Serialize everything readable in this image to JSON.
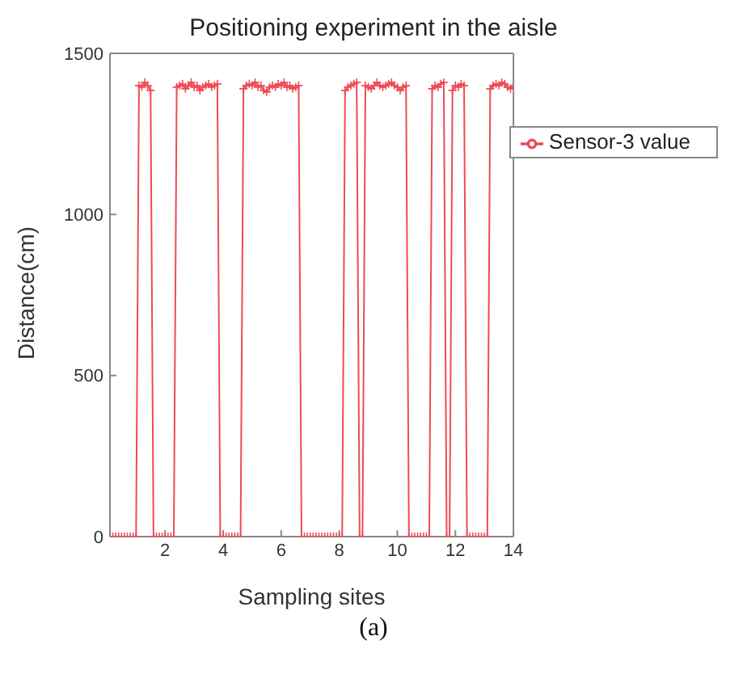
{
  "chart_data": {
    "type": "line",
    "title": "Positioning experiment in the aisle",
    "xlabel": "Sampling sites",
    "ylabel": "Distance(cm)",
    "annotations": [
      "(a)"
    ],
    "x": [
      0.1,
      0.2,
      0.3,
      0.4,
      0.5,
      0.6,
      0.7,
      0.8,
      0.9,
      1.0,
      1.1,
      1.2,
      1.3,
      1.4,
      1.5,
      1.6,
      1.7,
      1.8,
      1.9,
      2.0,
      2.1,
      2.2,
      2.3,
      2.4,
      2.5,
      2.6,
      2.7,
      2.8,
      2.9,
      3.0,
      3.1,
      3.2,
      3.3,
      3.4,
      3.5,
      3.6,
      3.7,
      3.8,
      3.9,
      4.0,
      4.1,
      4.2,
      4.3,
      4.4,
      4.5,
      4.6,
      4.7,
      4.8,
      4.9,
      5.0,
      5.1,
      5.2,
      5.3,
      5.4,
      5.5,
      5.6,
      5.7,
      5.8,
      5.9,
      6.0,
      6.1,
      6.2,
      6.3,
      6.4,
      6.5,
      6.6,
      6.7,
      6.8,
      6.9,
      7.0,
      7.1,
      7.2,
      7.3,
      7.4,
      7.5,
      7.6,
      7.7,
      7.8,
      7.9,
      8.0,
      8.1,
      8.2,
      8.3,
      8.4,
      8.5,
      8.6,
      8.7,
      8.8,
      8.9,
      9.0,
      9.1,
      9.2,
      9.3,
      9.4,
      9.5,
      9.6,
      9.7,
      9.8,
      9.9,
      10.0,
      10.1,
      10.2,
      10.3,
      10.4,
      10.5,
      10.6,
      10.7,
      10.8,
      10.9,
      11.0,
      11.1,
      11.2,
      11.3,
      11.4,
      11.5,
      11.6,
      11.7,
      11.8,
      11.9,
      12.0,
      12.1,
      12.2,
      12.3,
      12.4,
      12.5,
      12.6,
      12.7,
      12.8,
      12.9,
      13.0,
      13.1,
      13.2,
      13.3,
      13.4,
      13.5,
      13.6,
      13.7,
      13.8,
      13.9,
      14.0
    ],
    "series": [
      {
        "name": "Sensor-3 value",
        "color": "#ee4b55",
        "values": [
          0,
          0,
          0,
          0,
          0,
          0,
          0,
          0,
          0,
          0,
          1400,
          1395,
          1410,
          1400,
          1385,
          0,
          0,
          0,
          0,
          0,
          0,
          0,
          0,
          1395,
          1400,
          1405,
          1390,
          1400,
          1410,
          1395,
          1400,
          1385,
          1395,
          1400,
          1405,
          1395,
          1400,
          1405,
          0,
          0,
          0,
          0,
          0,
          0,
          0,
          0,
          1390,
          1400,
          1405,
          1400,
          1410,
          1395,
          1400,
          1385,
          1380,
          1395,
          1400,
          1395,
          1405,
          1400,
          1410,
          1395,
          1400,
          1390,
          1395,
          1400,
          0,
          0,
          0,
          0,
          0,
          0,
          0,
          0,
          0,
          0,
          0,
          0,
          0,
          0,
          0,
          1385,
          1395,
          1400,
          1405,
          1410,
          0,
          0,
          1400,
          1395,
          1390,
          1400,
          1410,
          1400,
          1395,
          1400,
          1405,
          1410,
          1400,
          1395,
          1385,
          1395,
          1400,
          0,
          0,
          0,
          0,
          0,
          0,
          0,
          0,
          1390,
          1400,
          1395,
          1405,
          1410,
          0,
          0,
          1385,
          1400,
          1395,
          1405,
          1400,
          0,
          0,
          0,
          0,
          0,
          0,
          0,
          0,
          1390,
          1400,
          1405,
          1400,
          1410,
          1405,
          1395,
          1390,
          1400
        ]
      }
    ],
    "xlim": [
      0.1,
      14
    ],
    "xticks": [
      2,
      4,
      6,
      8,
      10,
      12,
      14
    ],
    "ylim": [
      0,
      1500
    ],
    "yticks": [
      0,
      500,
      1000,
      1500
    ],
    "legend": "top right",
    "marker": "cross",
    "line_style": "solid",
    "grid": false
  }
}
